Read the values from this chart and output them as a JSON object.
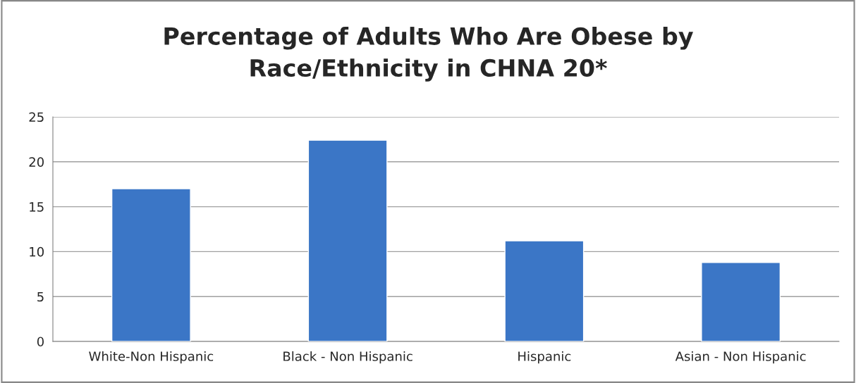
{
  "chart_data": {
    "type": "bar",
    "title": "Percentage of Adults Who Are Obese by\nRace/Ethnicity in CHNA 20*",
    "categories": [
      "White-Non Hispanic",
      "Black - Non Hispanic",
      "Hispanic",
      "Asian - Non Hispanic"
    ],
    "values": [
      17.0,
      22.4,
      11.2,
      8.8
    ],
    "color": "#3b76c6",
    "ylim": [
      0,
      25
    ],
    "yticks": [
      0,
      5,
      10,
      15,
      20,
      25
    ],
    "grid": "y",
    "legend": false
  }
}
